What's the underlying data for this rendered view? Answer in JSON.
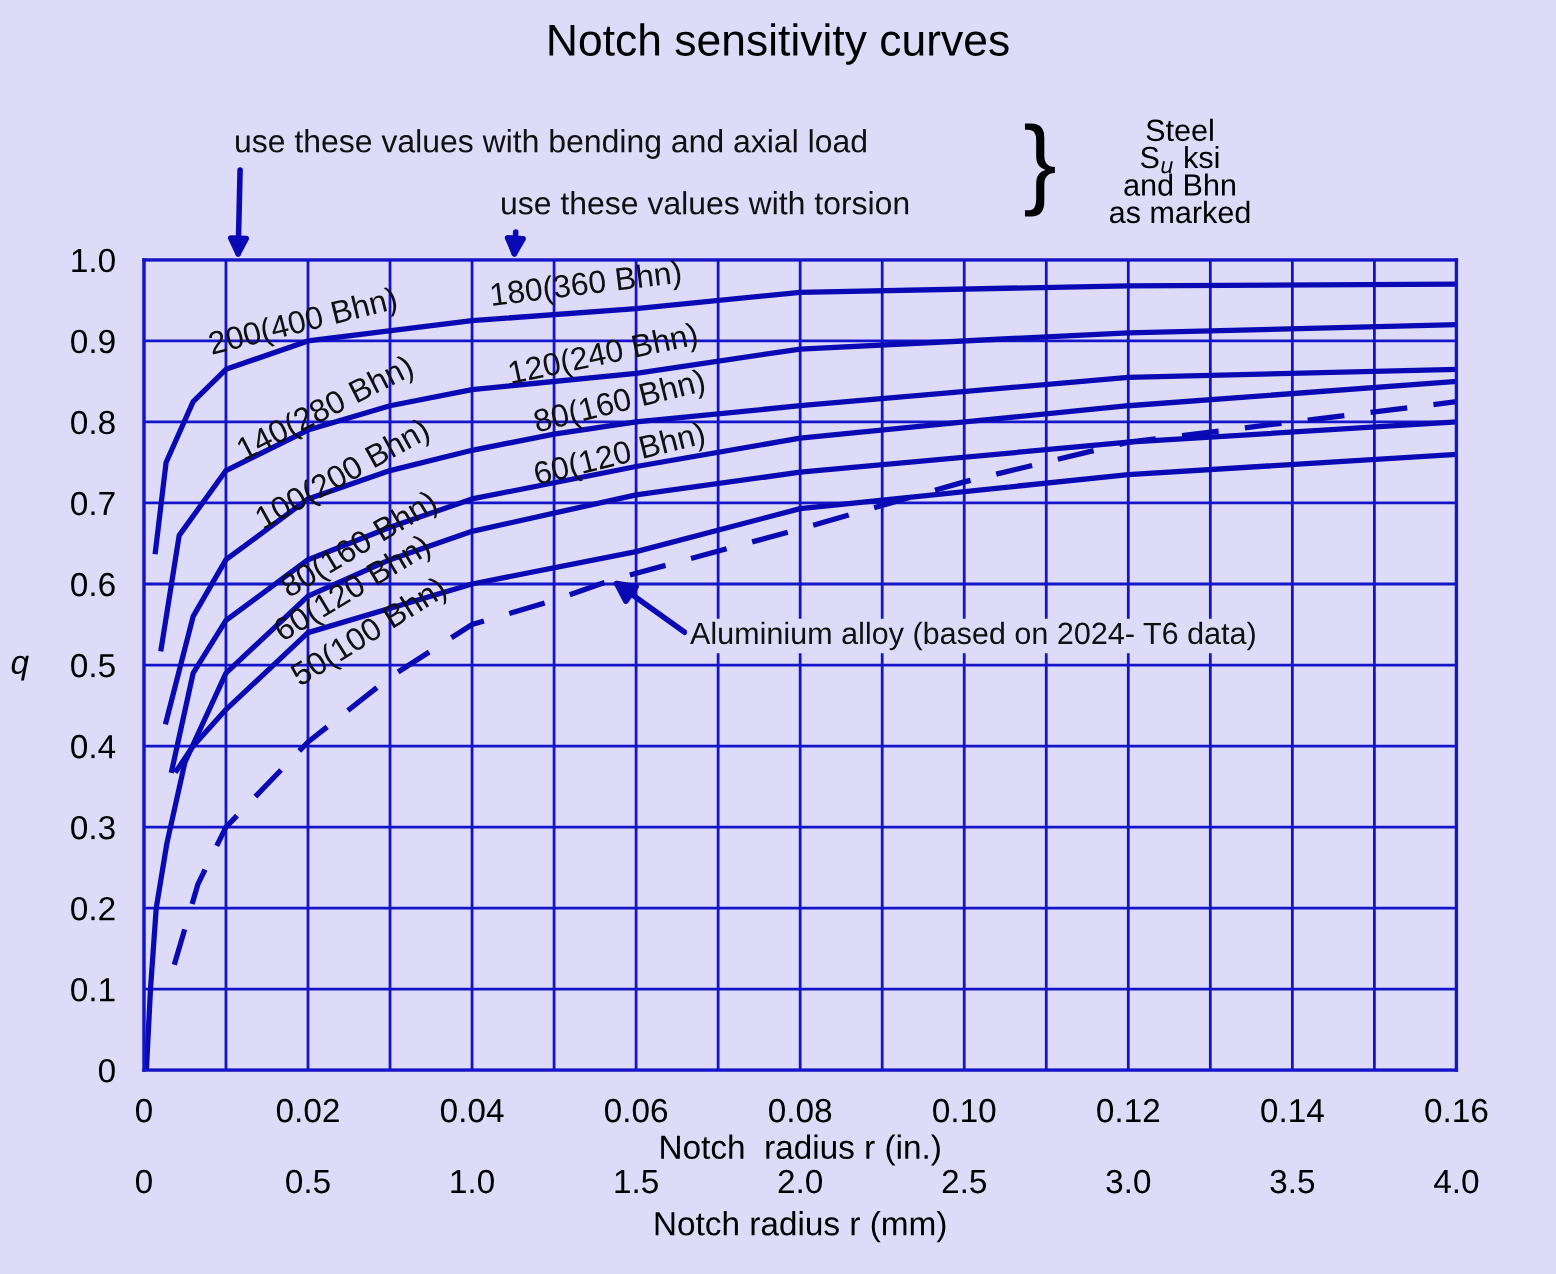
{
  "chart_data": {
    "type": "line",
    "title": "Notch sensitivity curves",
    "xlabel": "Notch  radius r (in.)",
    "x2label": "Notch radius r (mm)",
    "ylabel": "q",
    "xlim": [
      0,
      0.16
    ],
    "xticks": [
      0,
      {
        "value": 0.01,
        "label": null
      },
      0.02,
      {
        "value": 0.03,
        "label": null
      },
      0.04,
      {
        "value": 0.05,
        "label": null
      },
      0.06,
      {
        "value": 0.07,
        "label": null
      },
      0.08,
      {
        "value": 0.09,
        "label": null
      },
      {
        "value": 0.1,
        "label": "0.10"
      },
      {
        "value": 0.11,
        "label": null
      },
      0.12,
      {
        "value": 0.13,
        "label": null
      },
      0.14,
      {
        "value": 0.15,
        "label": null
      },
      0.16
    ],
    "x2lim": [
      0,
      4.0
    ],
    "x2ticks": [
      0,
      0.5,
      {
        "value": 1,
        "label": "1.0"
      },
      1.5,
      {
        "value": 2,
        "label": "2.0"
      },
      2.5,
      {
        "value": 3,
        "label": "3.0"
      },
      3.5,
      {
        "value": 4,
        "label": "4.0"
      }
    ],
    "ylim": [
      0,
      1.0
    ],
    "yticks": [
      0,
      0.1,
      0.2,
      0.3,
      0.4,
      0.5,
      0.6,
      0.7,
      0.8,
      0.9,
      {
        "value": 1,
        "label": "1.0"
      }
    ],
    "grid": true,
    "marker": "none",
    "line_style": "solid",
    "series": [
      {
        "color": "#0a0ab4",
        "x": [
          0.0014,
          0.0027,
          0.006,
          0.01,
          0.02,
          0.04,
          0.06,
          0.08,
          0.12,
          0.16
        ],
        "values": [
          0.64,
          0.75,
          0.825,
          0.865,
          0.9,
          0.925,
          0.94,
          0.96,
          0.968,
          0.97
        ]
      },
      {
        "color": "#0a0ab4",
        "x": [
          0.0021,
          0.0043,
          0.01,
          0.02,
          0.03,
          0.04,
          0.06,
          0.08,
          0.12,
          0.16
        ],
        "values": [
          0.52,
          0.66,
          0.74,
          0.79,
          0.82,
          0.84,
          0.86,
          0.89,
          0.91,
          0.92
        ]
      },
      {
        "color": "#0a0ab4",
        "x": [
          0.0027,
          0.006,
          0.01,
          0.02,
          0.03,
          0.04,
          0.05,
          0.06,
          0.08,
          0.12,
          0.16
        ],
        "values": [
          0.43,
          0.56,
          0.63,
          0.705,
          0.74,
          0.765,
          0.785,
          0.8,
          0.82,
          0.855,
          0.865
        ]
      },
      {
        "color": "#0a0ab4",
        "x": [
          0.0034,
          0.006,
          0.01,
          0.02,
          0.03,
          0.04,
          0.05,
          0.06,
          0.08,
          0.12,
          0.16
        ],
        "values": [
          0.37,
          0.49,
          0.555,
          0.63,
          0.67,
          0.705,
          0.725,
          0.745,
          0.78,
          0.82,
          0.85
        ]
      },
      {
        "color": "#0a0ab4",
        "x": [
          0.0003,
          0.0008,
          0.0015,
          0.0028,
          0.005,
          0.01,
          0.02,
          0.03,
          0.04,
          0.06,
          0.08,
          0.12,
          0.16
        ],
        "values": [
          0,
          0.1,
          0.2,
          0.28,
          0.38,
          0.49,
          0.585,
          0.63,
          0.665,
          0.71,
          0.738,
          0.775,
          0.8
        ]
      },
      {
        "color": "#0a0ab4",
        "x": [
          0.004,
          0.006,
          0.01,
          0.02,
          0.04,
          0.06,
          0.08,
          0.12,
          0.16
        ],
        "values": [
          0.37,
          0.4,
          0.445,
          0.54,
          0.6,
          0.64,
          0.693,
          0.735,
          0.76
        ]
      },
      {
        "color": "#0a0ab4",
        "line_style": "dashed",
        "x": [
          0.0037,
          0.0066,
          0.01,
          0.02,
          0.03,
          0.04,
          0.05,
          0.057,
          0.08,
          0.1,
          0.12,
          0.14,
          0.16
        ],
        "values": [
          0.13,
          0.23,
          0.3,
          0.405,
          0.485,
          0.55,
          0.58,
          0.605,
          0.668,
          0.726,
          0.775,
          0.8,
          0.825
        ]
      }
    ],
    "annotations": [
      "200(400 Bhn)",
      "180(360 Bhn)",
      "140(280 Bhn)",
      "120(240 Bhn)",
      "100(200 Bhn)",
      "80(160 Bhn)",
      "60(120 Bhn)",
      "80(160 Bhn)",
      "60(120 Bhn)",
      "50(100 Bhn)",
      {
        "text": "Aluminium alloy (based on 2024- T6 data)",
        "x": 0.057,
        "y": 0.605
      },
      "use these values with bending and axial load",
      "use these values with torsion",
      "}",
      "Steel\nS$_{u}$ ksi\nand Bhn\nas marked"
    ]
  }
}
